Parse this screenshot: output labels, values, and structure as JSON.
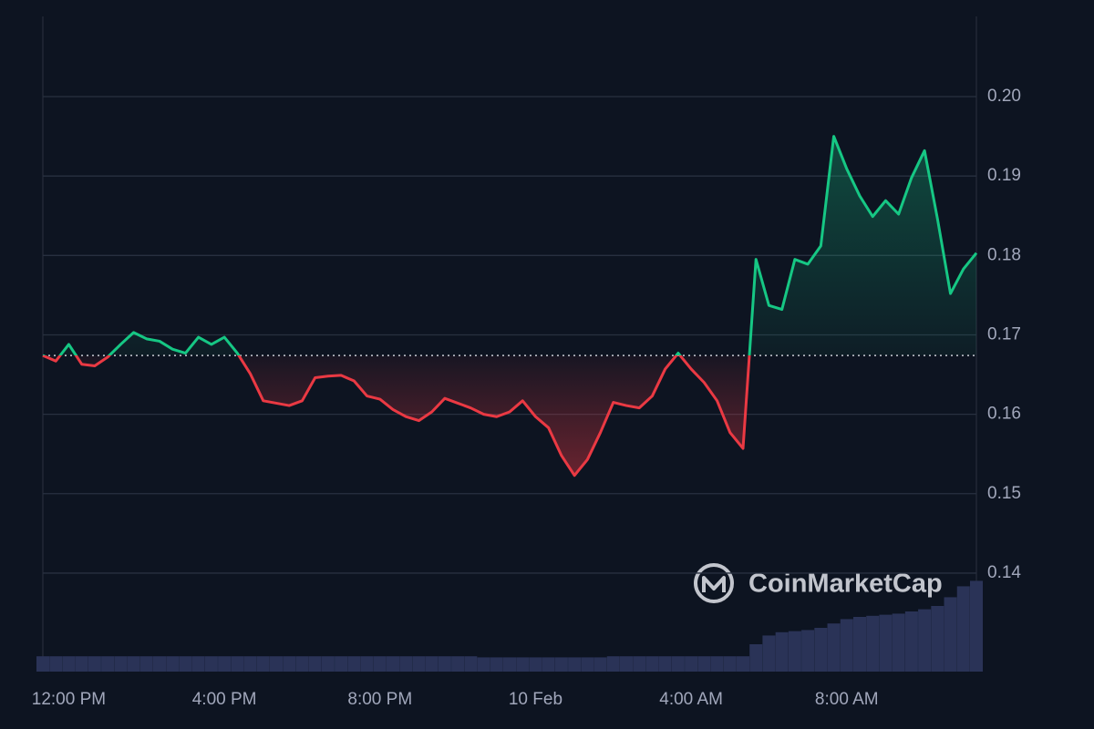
{
  "chart_data": {
    "type": "line",
    "watermark": "CoinMarketCap",
    "categories": [
      null,
      null,
      "12:00 PM",
      null,
      null,
      null,
      null,
      null,
      null,
      null,
      null,
      null,
      null,
      null,
      "4:00 PM",
      null,
      null,
      null,
      null,
      null,
      null,
      null,
      null,
      null,
      null,
      null,
      "8:00 PM",
      null,
      null,
      null,
      null,
      null,
      null,
      null,
      null,
      null,
      null,
      null,
      "10 Feb",
      null,
      null,
      null,
      null,
      null,
      null,
      null,
      null,
      null,
      null,
      null,
      "4:00 AM",
      null,
      null,
      null,
      null,
      null,
      null,
      null,
      null,
      null,
      null,
      null,
      "8:00 AM",
      null,
      null,
      null,
      null,
      null,
      null,
      null,
      null,
      null,
      null
    ],
    "values": [
      0.1674,
      0.1667,
      0.1688,
      0.1663,
      0.1661,
      0.1672,
      0.1688,
      0.1703,
      0.1695,
      0.1692,
      0.1682,
      0.1677,
      0.1697,
      0.1688,
      0.1697,
      0.1677,
      0.1651,
      0.1617,
      0.1614,
      0.1611,
      0.1617,
      0.1646,
      0.1648,
      0.1649,
      0.1642,
      0.1623,
      0.1619,
      0.1606,
      0.1597,
      0.1592,
      0.1603,
      0.162,
      0.1614,
      0.1608,
      0.16,
      0.1597,
      0.1603,
      0.1617,
      0.1597,
      0.1583,
      0.1548,
      0.1523,
      0.1543,
      0.1577,
      0.1615,
      0.1611,
      0.1608,
      0.1623,
      0.1657,
      0.1677,
      0.1657,
      0.164,
      0.1617,
      0.1577,
      0.1557,
      0.1795,
      0.1737,
      0.1732,
      0.1795,
      0.1789,
      0.1812,
      0.195,
      0.1909,
      0.1875,
      0.1849,
      0.1869,
      0.1852,
      0.1898,
      0.1932,
      0.1846,
      0.1752,
      0.1783,
      0.1803
    ],
    "baseline": 0.1674,
    "up_color": "#16c784",
    "down_color": "#ea3943",
    "volume_values": [
      14,
      14,
      14,
      14,
      14,
      14,
      14,
      14,
      14,
      14,
      14,
      14,
      14,
      14,
      14,
      14,
      14,
      14,
      14,
      14,
      14,
      14,
      14,
      14,
      14,
      14,
      14,
      14,
      14,
      14,
      14,
      14,
      14,
      14,
      13,
      13,
      13,
      13,
      13,
      13,
      13,
      13,
      13,
      13,
      14,
      14,
      14,
      14,
      14,
      14,
      14,
      14,
      14,
      14,
      14,
      25,
      33,
      36,
      37,
      38,
      40,
      44,
      48,
      50,
      51,
      52,
      53,
      55,
      57,
      60,
      68,
      78,
      83
    ],
    "volume_color": "#2a3357",
    "y2lim": [
      0,
      100
    ],
    "ylim": [
      0.1276,
      0.2101
    ],
    "yticks": [
      0.14,
      0.15,
      0.16,
      0.17,
      0.18,
      0.19,
      {
        "value": 0.2,
        "label": "0.20"
      }
    ],
    "grid": true
  }
}
